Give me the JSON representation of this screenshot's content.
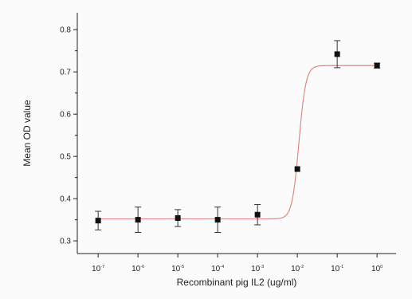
{
  "chart_data": {
    "type": "scatter",
    "xlabel": "Recombinant pig IL2 (ug/ml)",
    "ylabel": "Mean OD value",
    "x_scale": "log",
    "xlim": [
      3e-08,
      3
    ],
    "ylim": [
      0.27,
      0.84
    ],
    "grid": false,
    "x_ticks": [
      {
        "value": 1e-07,
        "base": "10",
        "exp": "-7"
      },
      {
        "value": 1e-06,
        "base": "10",
        "exp": "-6"
      },
      {
        "value": 1e-05,
        "base": "10",
        "exp": "-5"
      },
      {
        "value": 0.0001,
        "base": "10",
        "exp": "-4"
      },
      {
        "value": 0.001,
        "base": "10",
        "exp": "-3"
      },
      {
        "value": 0.01,
        "base": "10",
        "exp": "-2"
      },
      {
        "value": 0.1,
        "base": "10",
        "exp": "-1"
      },
      {
        "value": 1,
        "base": "10",
        "exp": "0"
      }
    ],
    "y_ticks": [
      "0.3",
      "0.4",
      "0.5",
      "0.6",
      "0.7",
      "0.8"
    ],
    "points": [
      {
        "x": 1e-07,
        "y": 0.348,
        "err": 0.022
      },
      {
        "x": 1e-06,
        "y": 0.35,
        "err": 0.03
      },
      {
        "x": 1e-05,
        "y": 0.354,
        "err": 0.02
      },
      {
        "x": 0.0001,
        "y": 0.35,
        "err": 0.03
      },
      {
        "x": 0.001,
        "y": 0.362,
        "err": 0.024
      },
      {
        "x": 0.01,
        "y": 0.47,
        "err": 0.0
      },
      {
        "x": 0.1,
        "y": 0.742,
        "err": 0.032
      },
      {
        "x": 1,
        "y": 0.715,
        "err": 0.006
      }
    ],
    "fit_curve": {
      "type": "sigmoid",
      "bottom": 0.352,
      "top": 0.715,
      "log_ec50": -1.96,
      "slope": 5,
      "color": "#d98a8a"
    },
    "marker_color": "#111111"
  }
}
